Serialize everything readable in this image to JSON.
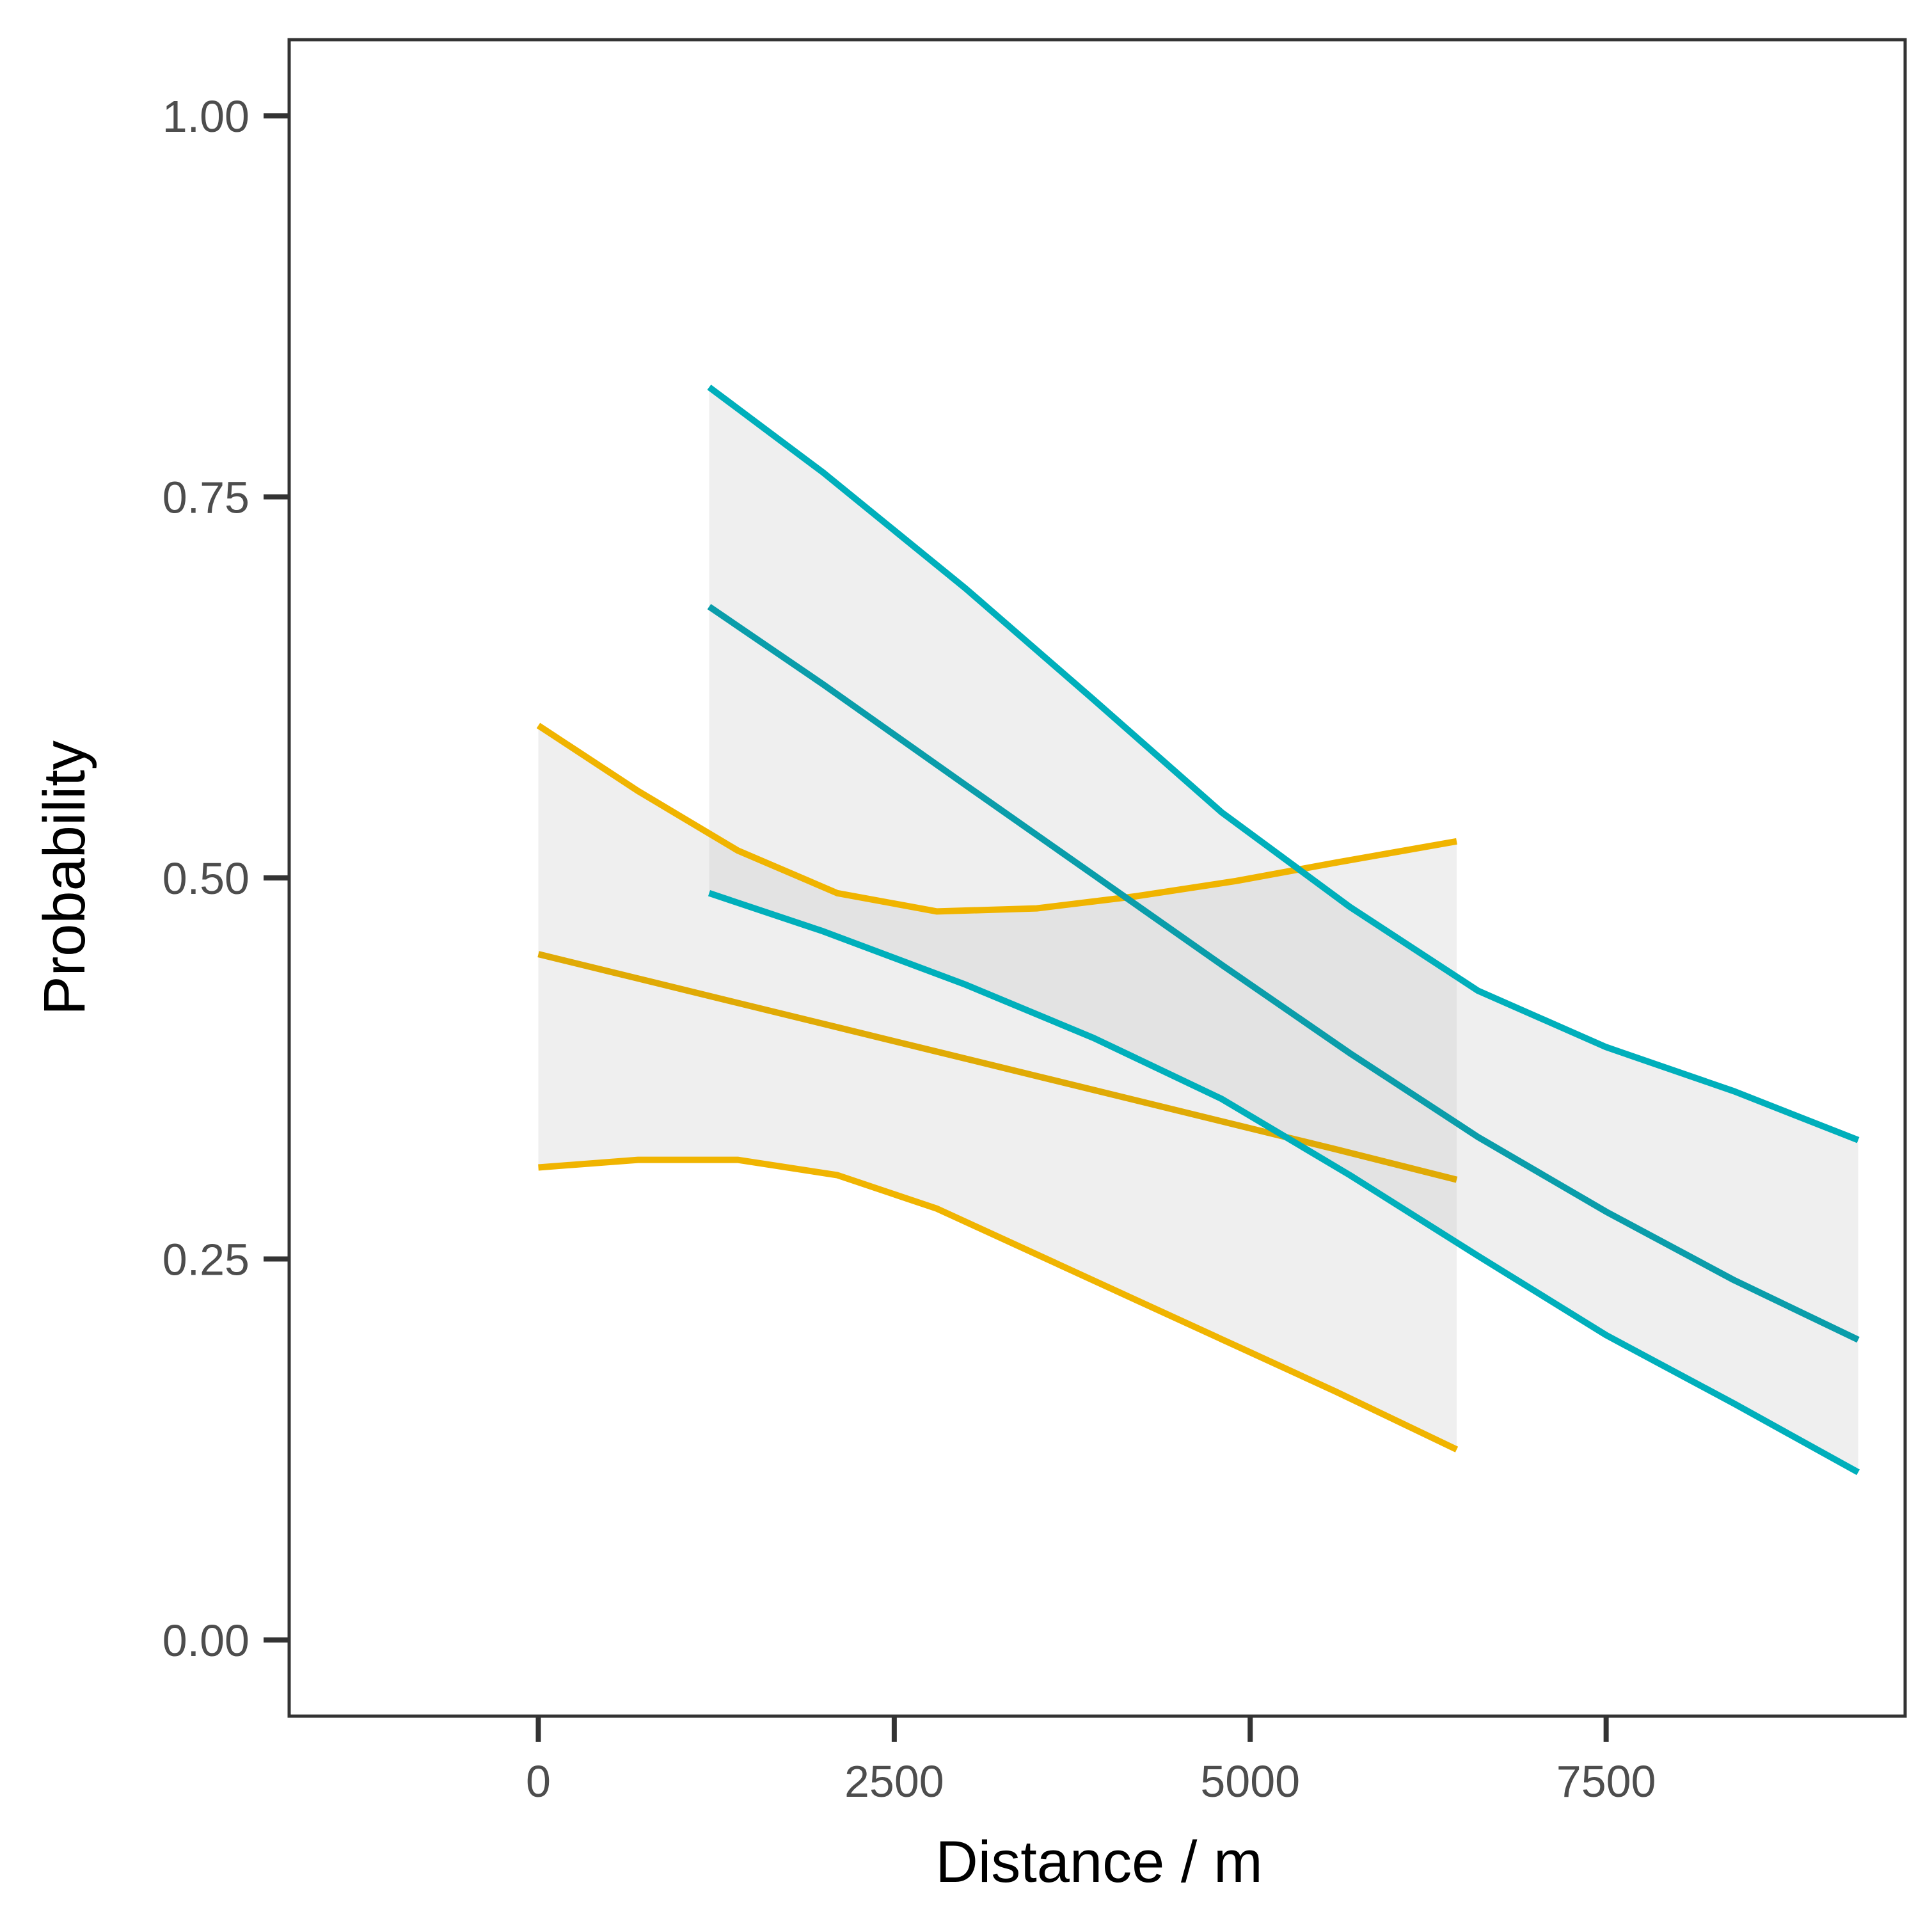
{
  "chart_data": {
    "type": "line",
    "title": "",
    "xlabel": "Distance / m",
    "ylabel": "Probability",
    "xlim": [
      -1750,
      9600
    ],
    "ylim": [
      -0.05,
      1.05
    ],
    "x_ticks": [
      0,
      2500,
      5000,
      7500
    ],
    "x_tick_labels": [
      "0",
      "2500",
      "5000",
      "7500"
    ],
    "y_ticks": [
      0.0,
      0.25,
      0.5,
      0.75,
      1.0
    ],
    "y_tick_labels": [
      "0.00",
      "0.25",
      "0.50",
      "0.75",
      "1.00"
    ],
    "grid": false,
    "legend": "none",
    "series": [
      {
        "name": "orange",
        "color": "#F0B400",
        "fit_color": "#E0AA05",
        "x": [
          0,
          700,
          1400,
          2100,
          2800,
          3500,
          4200,
          4900,
          5600,
          6450
        ],
        "fit": [
          0.45,
          0.434,
          0.418,
          0.402,
          0.386,
          0.37,
          0.354,
          0.338,
          0.322,
          0.302
        ],
        "lower": [
          0.31,
          0.315,
          0.315,
          0.305,
          0.283,
          0.253,
          0.223,
          0.193,
          0.163,
          0.125
        ],
        "upper": [
          0.6,
          0.557,
          0.518,
          0.49,
          0.478,
          0.48,
          0.488,
          0.498,
          0.51,
          0.524
        ]
      },
      {
        "name": "teal",
        "color": "#00AFBB",
        "fit_color": "#0A9DAA",
        "x": [
          1200,
          2000,
          3000,
          3900,
          4800,
          5700,
          6600,
          7500,
          8400,
          9270
        ],
        "fit": [
          0.678,
          0.627,
          0.561,
          0.502,
          0.443,
          0.385,
          0.33,
          0.281,
          0.236,
          0.197
        ],
        "lower": [
          0.49,
          0.465,
          0.43,
          0.395,
          0.355,
          0.305,
          0.252,
          0.2,
          0.155,
          0.11
        ],
        "upper": [
          0.822,
          0.766,
          0.69,
          0.617,
          0.543,
          0.481,
          0.426,
          0.389,
          0.36,
          0.328
        ]
      }
    ]
  }
}
